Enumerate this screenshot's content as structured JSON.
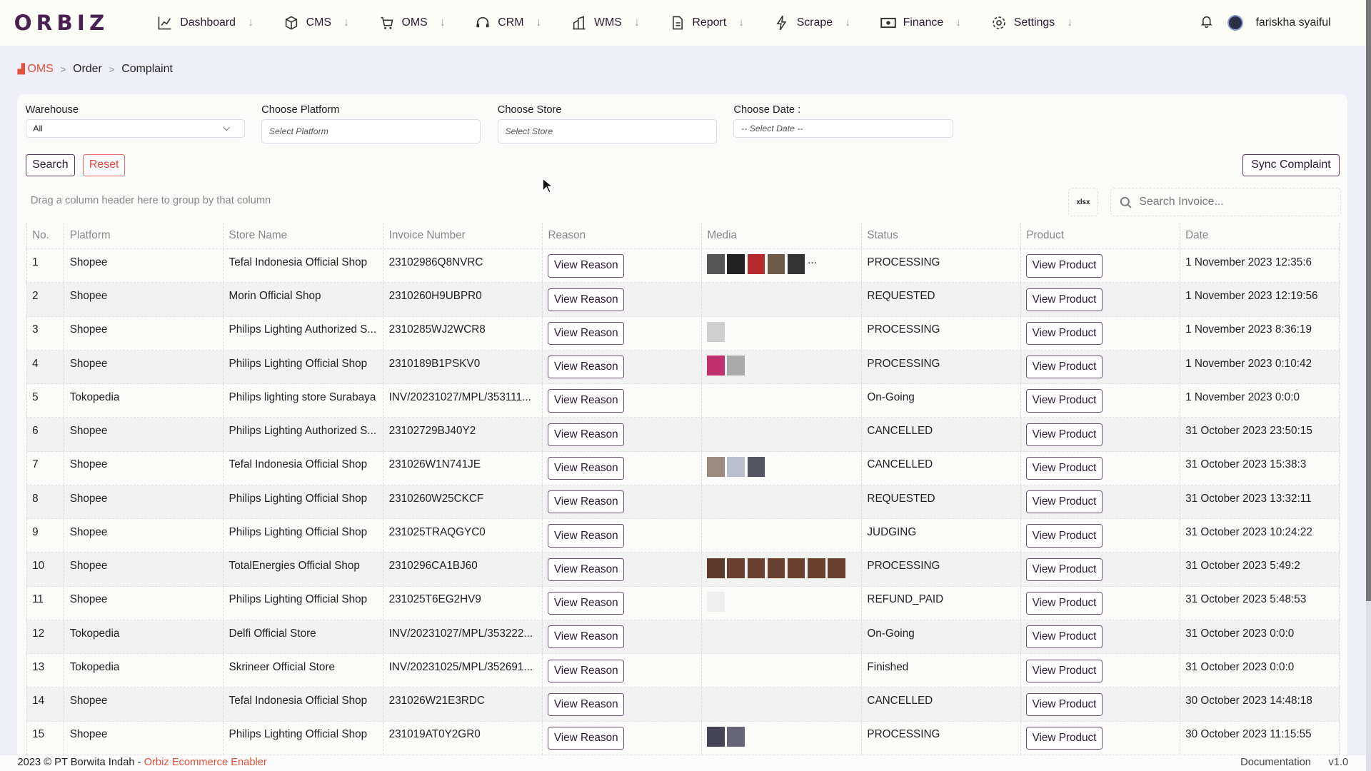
{
  "app": {
    "logo": "ORBIZ",
    "user": "fariskha syaiful"
  },
  "nav": [
    {
      "label": "Dashboard",
      "icon": "chart-line-icon"
    },
    {
      "label": "CMS",
      "icon": "box-icon"
    },
    {
      "label": "OMS",
      "icon": "cart-icon"
    },
    {
      "label": "CRM",
      "icon": "headset-icon"
    },
    {
      "label": "WMS",
      "icon": "warehouse-icon"
    },
    {
      "label": "Report",
      "icon": "document-icon"
    },
    {
      "label": "Scrape",
      "icon": "bolt-icon"
    },
    {
      "label": "Finance",
      "icon": "money-icon"
    },
    {
      "label": "Settings",
      "icon": "gear-icon"
    }
  ],
  "breadcrumb": [
    "OMS",
    "Order",
    "Complaint"
  ],
  "filters": {
    "warehouse_label": "Warehouse",
    "warehouse_value": "All",
    "platform_label": "Choose Platform",
    "platform_placeholder": "Select Platform",
    "store_label": "Choose Store",
    "store_placeholder": "Select Store",
    "date_label": "Choose Date :",
    "date_placeholder": "-- Select Date --"
  },
  "buttons": {
    "search": "Search",
    "reset": "Reset",
    "sync": "Sync Complaint",
    "export": "xlsx"
  },
  "grid": {
    "group_hint": "Drag a column header here to group by that column",
    "search_placeholder": "Search Invoice...",
    "reason_btn": "View Reason",
    "product_btn": "View Product",
    "columns": [
      "No.",
      "Platform",
      "Store Name",
      "Invoice Number",
      "Reason",
      "Media",
      "Status",
      "Product",
      "Date"
    ],
    "rows": [
      {
        "no": "1",
        "platform": "Shopee",
        "store": "Tefal Indonesia Official Shop",
        "invoice": "23102986Q8NVRC",
        "media": [
          "#555",
          "#222",
          "#b52a2a",
          "#6d5a48",
          "#333"
        ],
        "more": "...",
        "status": "PROCESSING",
        "date": "1 November 2023 12:35:6"
      },
      {
        "no": "2",
        "platform": "Shopee",
        "store": "Morin Official Shop",
        "invoice": "2310260H9UBPR0",
        "media": [],
        "status": "REQUESTED",
        "date": "1 November 2023 12:19:56"
      },
      {
        "no": "3",
        "platform": "Shopee",
        "store": "Philips Lighting Authorized S...",
        "invoice": "2310285WJ2WCR8",
        "media": [
          "#cfcfcf"
        ],
        "status": "PROCESSING",
        "date": "1 November 2023 8:36:19"
      },
      {
        "no": "4",
        "platform": "Shopee",
        "store": "Philips Lighting Official Shop",
        "invoice": "2310189B1PSKV0",
        "media": [
          "#c0306e",
          "#aaa"
        ],
        "status": "PROCESSING",
        "date": "1 November 2023 0:10:42"
      },
      {
        "no": "5",
        "platform": "Tokopedia",
        "store": "Philips lighting store Surabaya",
        "invoice": "INV/20231027/MPL/353111...",
        "media": [],
        "status": "On-Going",
        "date": "1 November 2023 0:0:0"
      },
      {
        "no": "6",
        "platform": "Shopee",
        "store": "Philips Lighting Authorized S...",
        "invoice": "23102729BJ40Y2",
        "media": [],
        "status": "CANCELLED",
        "date": "31 October 2023 23:50:15"
      },
      {
        "no": "7",
        "platform": "Shopee",
        "store": "Tefal Indonesia Official Shop",
        "invoice": "231026W1N741JE",
        "media": [
          "#9a8a80",
          "#b8c0d0",
          "#556"
        ],
        "status": "CANCELLED",
        "date": "31 October 2023 15:38:3"
      },
      {
        "no": "8",
        "platform": "Shopee",
        "store": "Philips Lighting Official Shop",
        "invoice": "2310260W25CKCF",
        "media": [],
        "status": "REQUESTED",
        "date": "31 October 2023 13:32:11"
      },
      {
        "no": "9",
        "platform": "Shopee",
        "store": "Philips Lighting Official Shop",
        "invoice": "231025TRAQGYC0",
        "media": [],
        "status": "JUDGING",
        "date": "31 October 2023 10:24:22"
      },
      {
        "no": "10",
        "platform": "Shopee",
        "store": "TotalEnergies Official Shop",
        "invoice": "2310296CA1BJ60",
        "media": [
          "#5a3a2a",
          "#6a4030",
          "#6a4030",
          "#6a4030",
          "#6a4030",
          "#6a4030",
          "#6a4030"
        ],
        "status": "PROCESSING",
        "date": "31 October 2023 5:49:2"
      },
      {
        "no": "11",
        "platform": "Shopee",
        "store": "Philips Lighting Official Shop",
        "invoice": "231025T6EG2HV9",
        "media": [
          "#eee"
        ],
        "status": "REFUND_PAID",
        "date": "31 October 2023 5:48:53"
      },
      {
        "no": "12",
        "platform": "Tokopedia",
        "store": "Delfi Official Store",
        "invoice": "INV/20231027/MPL/353222...",
        "media": [],
        "status": "On-Going",
        "date": "31 October 2023 0:0:0"
      },
      {
        "no": "13",
        "platform": "Tokopedia",
        "store": "Skrineer Official Store",
        "invoice": "INV/20231025/MPL/352691...",
        "media": [],
        "status": "Finished",
        "date": "31 October 2023 0:0:0"
      },
      {
        "no": "14",
        "platform": "Shopee",
        "store": "Tefal Indonesia Official Shop",
        "invoice": "231026W21E3RDC",
        "media": [],
        "status": "CANCELLED",
        "date": "30 October 2023 14:48:18"
      },
      {
        "no": "15",
        "platform": "Shopee",
        "store": "Philips Lighting Official Shop",
        "invoice": "231019AT0Y2GR0",
        "media": [
          "#445",
          "#667"
        ],
        "status": "PROCESSING",
        "date": "30 October 2023 11:15:55"
      }
    ]
  },
  "footer": {
    "copyright": "2023 © PT Borwita Indah - ",
    "brand": "Orbiz Ecommerce Enabler",
    "docs": "Documentation",
    "version": "v1.0"
  },
  "colors": {
    "brand": "#4a1f52",
    "accent": "#e2513a"
  }
}
